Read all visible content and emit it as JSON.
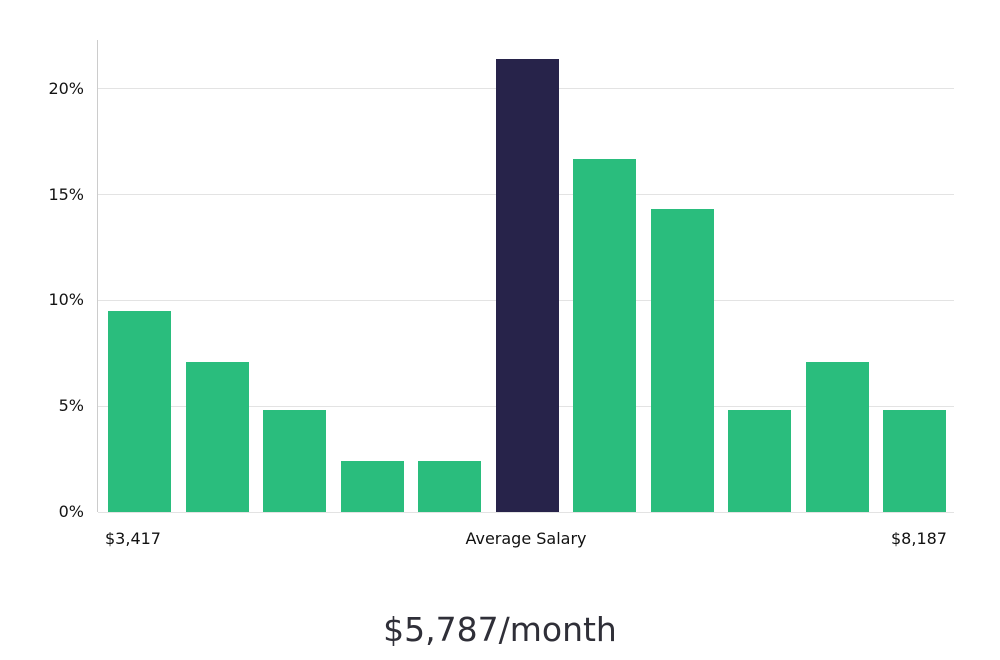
{
  "page": {
    "background": "#ffffff"
  },
  "chart_data": {
    "type": "bar",
    "title": "",
    "xlabel": "",
    "ylabel": "",
    "values": [
      9.5,
      7.1,
      4.8,
      2.4,
      2.4,
      21.4,
      16.7,
      14.3,
      4.8,
      7.1,
      4.8
    ],
    "highlight_index": 5,
    "y_ticks": [
      0,
      5,
      10,
      15,
      20
    ],
    "y_tick_labels": [
      "0%",
      "5%",
      "10%",
      "15%",
      "20%"
    ],
    "ylim": [
      0,
      22.3
    ],
    "grid": true,
    "legend": "none",
    "bar_color": "#2abd7d",
    "highlight_color": "#27234a",
    "gridline_color": "#e3e3e3",
    "axis_line_color": "#cccccc",
    "x_axis_labels": {
      "left": "$3,417",
      "center": "Average Salary",
      "right": "$8,187"
    }
  },
  "footer": {
    "average_salary_text": "$5,787/month"
  }
}
